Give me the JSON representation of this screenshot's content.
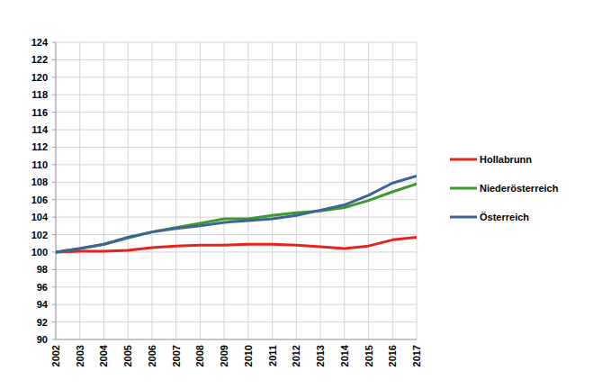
{
  "chart_data": {
    "type": "line",
    "categories": [
      "2002",
      "2003",
      "2004",
      "2005",
      "2006",
      "2007",
      "2008",
      "2009",
      "2010",
      "2011",
      "2012",
      "2013",
      "2014",
      "2015",
      "2016",
      "2017"
    ],
    "series": [
      {
        "name": "Hollabrunn",
        "color": "#e8231c",
        "values": [
          100,
          100.1,
          100.1,
          100.2,
          100.5,
          100.7,
          100.8,
          100.8,
          100.9,
          100.9,
          100.8,
          100.6,
          100.4,
          100.7,
          101.4,
          101.7
        ]
      },
      {
        "name": "Niederösterreich",
        "color": "#3a9b2a",
        "values": [
          100,
          100.4,
          100.9,
          101.6,
          102.3,
          102.8,
          103.3,
          103.8,
          103.8,
          104.2,
          104.5,
          104.7,
          105.1,
          105.9,
          106.9,
          107.8
        ]
      },
      {
        "name": "Österreich",
        "color": "#3c6496",
        "values": [
          100,
          100.4,
          100.9,
          101.7,
          102.3,
          102.7,
          103.0,
          103.4,
          103.6,
          103.8,
          104.2,
          104.8,
          105.4,
          106.5,
          107.9,
          108.7
        ]
      }
    ],
    "ylim": [
      90,
      124
    ],
    "yticks": [
      90,
      92,
      94,
      96,
      98,
      100,
      102,
      104,
      106,
      108,
      110,
      112,
      114,
      116,
      118,
      120,
      122,
      124
    ],
    "grid": true,
    "legend": "right"
  }
}
